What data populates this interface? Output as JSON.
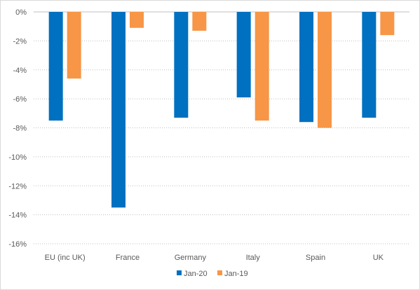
{
  "chart_data": {
    "type": "bar",
    "categories": [
      "EU (inc UK)",
      "France",
      "Germany",
      "Italy",
      "Spain",
      "UK"
    ],
    "series": [
      {
        "name": "Jan-20",
        "color": "#0070C0",
        "values": [
          -7.5,
          -13.5,
          -7.3,
          -5.9,
          -7.6,
          -7.3
        ]
      },
      {
        "name": "Jan-19",
        "color": "#F79646",
        "values": [
          -4.6,
          -1.1,
          -1.3,
          -7.5,
          -8.0,
          -1.6
        ]
      }
    ],
    "ylim": [
      -16,
      0
    ],
    "yticks": [
      0,
      -2,
      -4,
      -6,
      -8,
      -10,
      -12,
      -14,
      -16
    ],
    "ytick_labels": [
      "0%",
      "-2%",
      "-4%",
      "-6%",
      "-8%",
      "-10%",
      "-12%",
      "-14%",
      "-16%"
    ],
    "grid": true,
    "legend": "bottom-center",
    "title": "",
    "xlabel": "",
    "ylabel": ""
  }
}
